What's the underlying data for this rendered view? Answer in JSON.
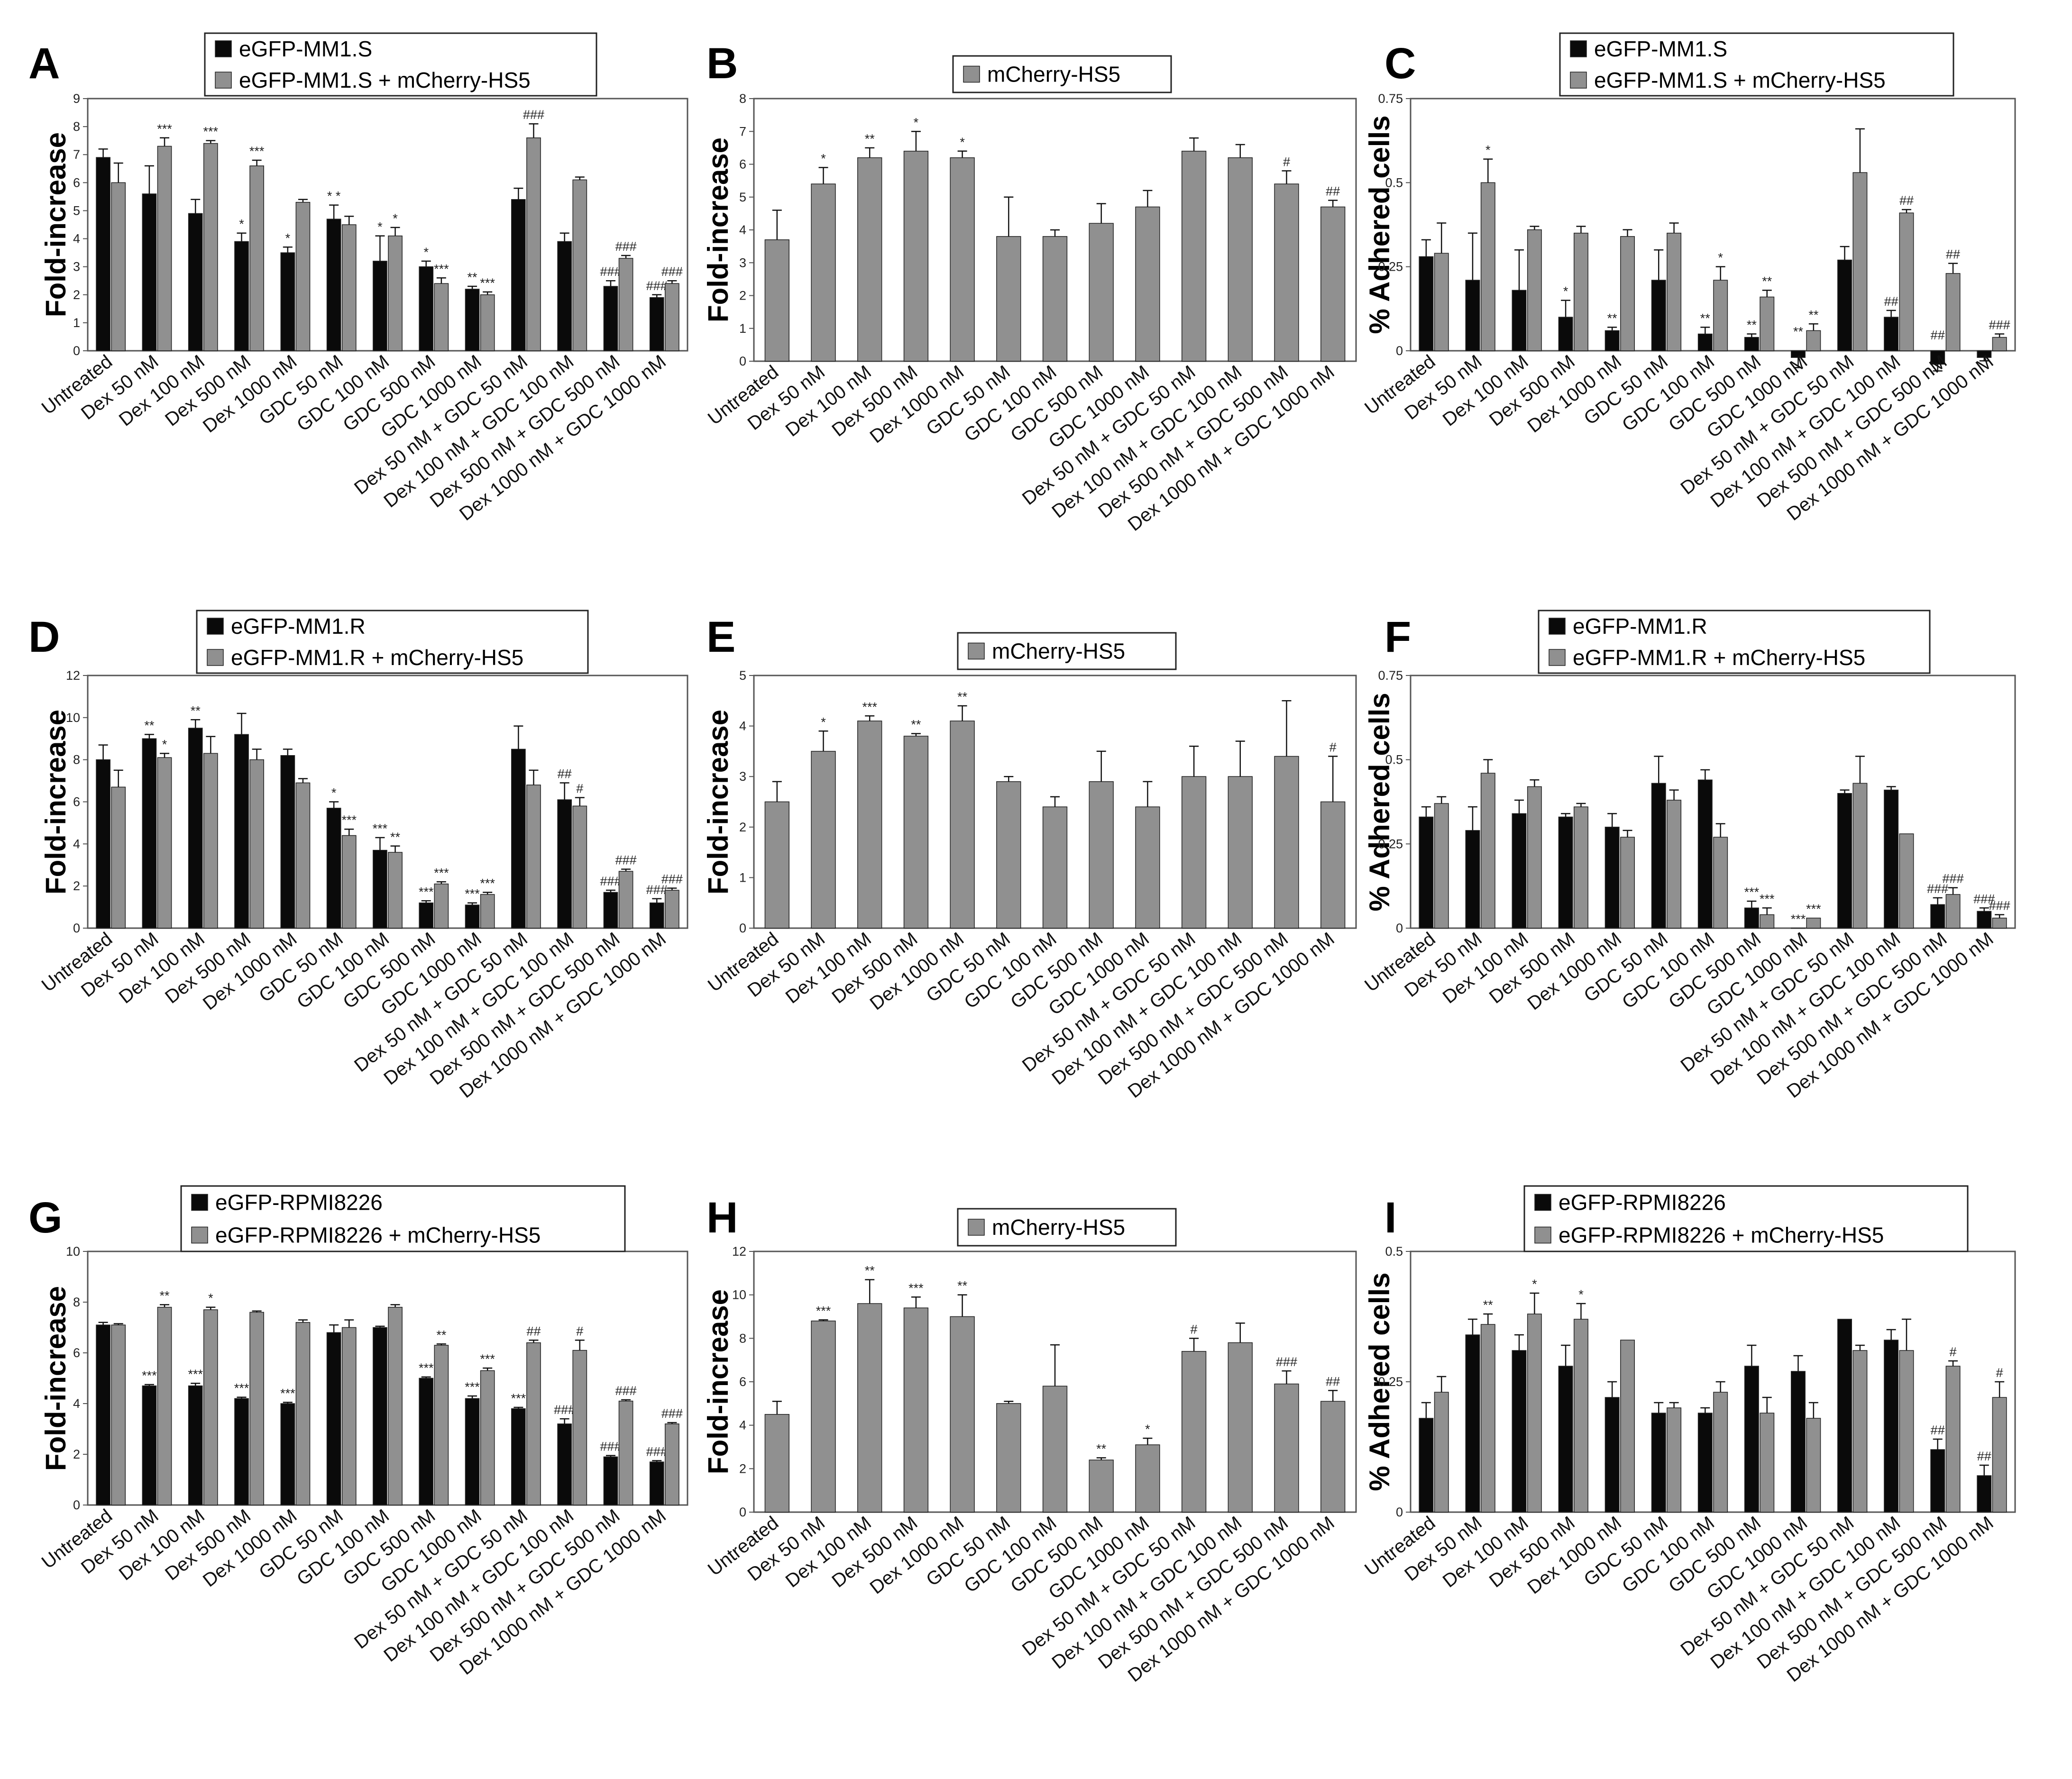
{
  "colors": {
    "black": "#0a0a0a",
    "gray": "#909090"
  },
  "chart_data": [
    {
      "panel": "A",
      "type": "bar",
      "ylabel": "Fold-increase",
      "ylim": [
        0,
        9
      ],
      "yticks": [
        "0",
        "1",
        "2",
        "3",
        "4",
        "5",
        "6",
        "7",
        "8",
        "9"
      ],
      "legend": [
        "eGFP-MM1.S",
        "eGFP-MM1.S + mCherry-HS5"
      ],
      "categories": [
        "Untreated",
        "Dex 50 nM",
        "Dex 100 nM",
        "Dex 500 nM",
        "Dex 1000 nM",
        "GDC 50 nM",
        "GDC 100 nM",
        "GDC 500 nM",
        "GDC 1000 nM",
        "Dex 50 nM + GDC 50 nM",
        "Dex 100 nM + GDC 100 nM",
        "Dex 500 nM + GDC 500 nM",
        "Dex 1000 nM + GDC 1000 nM"
      ],
      "series": [
        {
          "name": "eGFP-MM1.S",
          "color": "#0a0a0a",
          "values": [
            6.9,
            5.6,
            4.9,
            3.9,
            3.5,
            4.7,
            3.2,
            3.0,
            2.2,
            5.4,
            3.9,
            2.3,
            1.9
          ],
          "errors": [
            0.3,
            1.0,
            0.5,
            0.3,
            0.2,
            0.5,
            0.9,
            0.2,
            0.1,
            0.4,
            0.3,
            0.2,
            0.1
          ],
          "annotations": [
            "",
            "",
            "",
            "*",
            "*",
            "* *",
            "*",
            "*",
            "**",
            "",
            "",
            "###",
            "###"
          ]
        },
        {
          "name": "eGFP-MM1.S + mCherry-HS5",
          "color": "#909090",
          "values": [
            6.0,
            7.3,
            7.4,
            6.6,
            5.3,
            4.5,
            4.1,
            2.4,
            2.0,
            7.6,
            6.1,
            3.3,
            2.4
          ],
          "errors": [
            0.7,
            0.3,
            0.1,
            0.2,
            0.1,
            0.3,
            0.3,
            0.2,
            0.1,
            0.5,
            0.1,
            0.1,
            0.1
          ],
          "annotations": [
            "",
            "***",
            "***",
            "***",
            "",
            "",
            "*",
            "***",
            "***",
            "###",
            "",
            "###",
            "###"
          ]
        }
      ]
    },
    {
      "panel": "B",
      "type": "bar",
      "ylabel": "Fold-increase",
      "ylim": [
        0,
        8
      ],
      "yticks": [
        "0",
        "1",
        "2",
        "3",
        "4",
        "5",
        "6",
        "7",
        "8"
      ],
      "legend": [
        "mCherry-HS5"
      ],
      "categories": [
        "Untreated",
        "Dex 50 nM",
        "Dex 100 nM",
        "Dex 500 nM",
        "Dex 1000 nM",
        "GDC 50 nM",
        "GDC 100 nM",
        "GDC 500 nM",
        "GDC 1000 nM",
        "Dex 50 nM + GDC 50 nM",
        "Dex 100 nM + GDC 100 nM",
        "Dex 500 nM + GDC 500 nM",
        "Dex 1000 nM + GDC 1000 nM"
      ],
      "series": [
        {
          "name": "mCherry-HS5",
          "color": "#909090",
          "values": [
            3.7,
            5.4,
            6.2,
            6.4,
            6.2,
            3.8,
            3.8,
            4.2,
            4.7,
            6.4,
            6.2,
            5.4,
            4.7
          ],
          "errors": [
            0.9,
            0.5,
            0.3,
            0.6,
            0.2,
            1.2,
            0.2,
            0.6,
            0.5,
            0.4,
            0.4,
            0.4,
            0.2
          ],
          "annotations": [
            "",
            "*",
            "**",
            "*",
            "*",
            "",
            "",
            "",
            "",
            "",
            "",
            "#",
            "##"
          ]
        }
      ]
    },
    {
      "panel": "C",
      "type": "bar",
      "ylabel": "% Adhered cells",
      "ylim": [
        0,
        0.75
      ],
      "yticks": [
        "0",
        "0.25",
        "0.5",
        "0.75"
      ],
      "legend": [
        "eGFP-MM1.S",
        "eGFP-MM1.S + mCherry-HS5"
      ],
      "categories": [
        "Untreated",
        "Dex 50 nM",
        "Dex 100 nM",
        "Dex 500 nM",
        "Dex 1000 nM",
        "GDC 50 nM",
        "GDC 100 nM",
        "GDC 500 nM",
        "GDC 1000 nM",
        "Dex 50 nM + GDC 50 nM",
        "Dex 100 nM + GDC 100 nM",
        "Dex 500 nM + GDC 500 nM",
        "Dex 1000 nM + GDC 1000 nM"
      ],
      "series": [
        {
          "name": "eGFP-MM1.S",
          "color": "#0a0a0a",
          "values": [
            0.28,
            0.21,
            0.18,
            0.1,
            0.06,
            0.21,
            0.05,
            0.04,
            -0.02,
            0.27,
            0.1,
            -0.04,
            -0.02
          ],
          "errors": [
            0.05,
            0.14,
            0.12,
            0.05,
            0.01,
            0.09,
            0.02,
            0.01,
            0.03,
            0.04,
            0.02,
            0.02,
            0.01
          ],
          "annotations": [
            "",
            "",
            "",
            "*",
            "**",
            "",
            "**",
            "**",
            "**",
            "",
            "##",
            "##",
            ""
          ]
        },
        {
          "name": "eGFP-MM1.S + mCherry-HS5",
          "color": "#909090",
          "values": [
            0.29,
            0.5,
            0.36,
            0.35,
            0.34,
            0.35,
            0.21,
            0.16,
            0.06,
            0.53,
            0.41,
            0.23,
            0.04
          ],
          "errors": [
            0.09,
            0.07,
            0.01,
            0.02,
            0.02,
            0.03,
            0.04,
            0.02,
            0.02,
            0.13,
            0.01,
            0.03,
            0.01
          ],
          "annotations": [
            "",
            "*",
            "",
            "",
            "",
            "",
            "*",
            "**",
            "**",
            "",
            "##",
            "##",
            "###"
          ]
        }
      ]
    },
    {
      "panel": "D",
      "type": "bar",
      "ylabel": "Fold-increase",
      "ylim": [
        0,
        12
      ],
      "yticks": [
        "0",
        "2",
        "4",
        "6",
        "8",
        "10",
        "12"
      ],
      "legend": [
        "eGFP-MM1.R",
        "eGFP-MM1.R + mCherry-HS5"
      ],
      "categories": [
        "Untreated",
        "Dex 50 nM",
        "Dex 100 nM",
        "Dex 500 nM",
        "Dex 1000 nM",
        "GDC 50 nM",
        "GDC 100 nM",
        "GDC 500 nM",
        "GDC 1000 nM",
        "Dex 50 nM + GDC 50 nM",
        "Dex 100 nM + GDC 100 nM",
        "Dex 500 nM + GDC 500 nM",
        "Dex 1000 nM + GDC 1000 nM"
      ],
      "series": [
        {
          "name": "eGFP-MM1.R",
          "color": "#0a0a0a",
          "values": [
            8.0,
            9.0,
            9.5,
            9.2,
            8.2,
            5.7,
            3.7,
            1.2,
            1.1,
            8.5,
            6.1,
            1.7,
            1.2
          ],
          "errors": [
            0.7,
            0.2,
            0.4,
            1.0,
            0.3,
            0.3,
            0.6,
            0.1,
            0.1,
            1.1,
            0.8,
            0.1,
            0.2
          ],
          "annotations": [
            "",
            "**",
            "**",
            "",
            "",
            "*",
            "***",
            "***",
            "***",
            "",
            "##",
            "###",
            "###"
          ]
        },
        {
          "name": "eGFP-MM1.R + mCherry-HS5",
          "color": "#909090",
          "values": [
            6.7,
            8.1,
            8.3,
            8.0,
            6.9,
            4.4,
            3.6,
            2.1,
            1.6,
            6.8,
            5.8,
            2.7,
            1.8
          ],
          "errors": [
            0.8,
            0.2,
            0.8,
            0.5,
            0.2,
            0.3,
            0.3,
            0.1,
            0.1,
            0.7,
            0.4,
            0.1,
            0.1
          ],
          "annotations": [
            "",
            "*",
            "",
            "",
            "",
            "***",
            "**",
            "***",
            "***",
            "",
            "#",
            "###",
            "###"
          ]
        }
      ]
    },
    {
      "panel": "E",
      "type": "bar",
      "ylabel": "Fold-increase",
      "ylim": [
        0,
        5
      ],
      "yticks": [
        "0",
        "1",
        "2",
        "3",
        "4",
        "5"
      ],
      "legend": [
        "mCherry-HS5"
      ],
      "categories": [
        "Untreated",
        "Dex 50 nM",
        "Dex 100 nM",
        "Dex 500 nM",
        "Dex 1000 nM",
        "GDC 50 nM",
        "GDC 100 nM",
        "GDC 500 nM",
        "GDC 1000 nM",
        "Dex 50 nM + GDC 50 nM",
        "Dex 100 nM + GDC 100 nM",
        "Dex 500 nM + GDC 500 nM",
        "Dex 1000 nM + GDC 1000 nM"
      ],
      "series": [
        {
          "name": "mCherry-HS5",
          "color": "#909090",
          "values": [
            2.5,
            3.5,
            4.1,
            3.8,
            4.1,
            2.9,
            2.4,
            2.9,
            2.4,
            3.0,
            3.0,
            3.4,
            2.5
          ],
          "errors": [
            0.4,
            0.4,
            0.1,
            0.05,
            0.3,
            0.1,
            0.2,
            0.6,
            0.5,
            0.6,
            0.7,
            1.1,
            0.9
          ],
          "annotations": [
            "",
            "*",
            "***",
            "**",
            "**",
            "",
            "",
            "",
            "",
            "",
            "",
            "",
            "#"
          ]
        }
      ]
    },
    {
      "panel": "F",
      "type": "bar",
      "ylabel": "% Adhered cells",
      "ylim": [
        0,
        0.75
      ],
      "yticks": [
        "0",
        "0.25",
        "0.5",
        "0.75"
      ],
      "legend": [
        "eGFP-MM1.R",
        "eGFP-MM1.R + mCherry-HS5"
      ],
      "categories": [
        "Untreated",
        "Dex 50 nM",
        "Dex 100 nM",
        "Dex 500 nM",
        "Dex 1000 nM",
        "GDC 50 nM",
        "GDC 100 nM",
        "GDC 500 nM",
        "GDC 1000 nM",
        "Dex 50 nM + GDC 50 nM",
        "Dex 100 nM + GDC 100 nM",
        "Dex 500 nM + GDC 500 nM",
        "Dex 1000 nM + GDC 1000 nM"
      ],
      "series": [
        {
          "name": "eGFP-MM1.R",
          "color": "#0a0a0a",
          "values": [
            0.33,
            0.29,
            0.34,
            0.33,
            0.3,
            0.43,
            0.44,
            0.06,
            0.0,
            0.4,
            0.41,
            0.07,
            0.05
          ],
          "errors": [
            0.03,
            0.07,
            0.04,
            0.01,
            0.04,
            0.08,
            0.03,
            0.02,
            0.0,
            0.01,
            0.01,
            0.02,
            0.01
          ],
          "annotations": [
            "",
            "",
            "",
            "",
            "",
            "",
            "",
            "***",
            "***",
            "",
            "",
            "###",
            "###"
          ]
        },
        {
          "name": "eGFP-MM1.R + mCherry-HS5",
          "color": "#909090",
          "values": [
            0.37,
            0.46,
            0.42,
            0.36,
            0.27,
            0.38,
            0.27,
            0.04,
            0.03,
            0.43,
            0.28,
            0.1,
            0.03
          ],
          "errors": [
            0.02,
            0.04,
            0.02,
            0.01,
            0.02,
            0.03,
            0.04,
            0.02,
            0.0,
            0.08,
            0.0,
            0.02,
            0.01
          ],
          "annotations": [
            "",
            "",
            "",
            "",
            "",
            "",
            "",
            "***",
            "***",
            "",
            "",
            "###",
            "###"
          ]
        }
      ]
    },
    {
      "panel": "G",
      "type": "bar",
      "ylabel": "Fold-increase",
      "ylim": [
        0,
        10
      ],
      "yticks": [
        "0",
        "2",
        "4",
        "6",
        "8",
        "10"
      ],
      "legend": [
        "eGFP-RPMI8226",
        "eGFP-RPMI8226 + mCherry-HS5"
      ],
      "categories": [
        "Untreated",
        "Dex 50 nM",
        "Dex 100 nM",
        "Dex 500 nM",
        "Dex 1000 nM",
        "GDC 50 nM",
        "GDC 100 nM",
        "GDC 500 nM",
        "GDC 1000 nM",
        "Dex 50 nM + GDC 50 nM",
        "Dex 100 nM + GDC 100 nM",
        "Dex 500 nM + GDC 500 nM",
        "Dex 1000 nM + GDC 1000 nM"
      ],
      "series": [
        {
          "name": "eGFP-RPMI8226",
          "color": "#0a0a0a",
          "values": [
            7.1,
            4.7,
            4.7,
            4.2,
            4.0,
            6.8,
            7.0,
            5.0,
            4.2,
            3.8,
            3.2,
            1.9,
            1.7
          ],
          "errors": [
            0.1,
            0.05,
            0.1,
            0.05,
            0.05,
            0.3,
            0.05,
            0.05,
            0.1,
            0.05,
            0.2,
            0.05,
            0.05
          ],
          "annotations": [
            "",
            "***",
            "***",
            "***",
            "***",
            "",
            "",
            "***",
            "***",
            "***",
            "###",
            "###",
            "###"
          ]
        },
        {
          "name": "eGFP-RPMI8226 + mCherry-HS5",
          "color": "#909090",
          "values": [
            7.1,
            7.8,
            7.7,
            7.6,
            7.2,
            7.0,
            7.8,
            6.3,
            5.3,
            6.4,
            6.1,
            4.1,
            3.2
          ],
          "errors": [
            0.05,
            0.1,
            0.1,
            0.05,
            0.1,
            0.3,
            0.1,
            0.05,
            0.1,
            0.1,
            0.4,
            0.05,
            0.05
          ],
          "annotations": [
            "",
            "**",
            "*",
            "",
            "",
            "",
            "",
            "**",
            "***",
            "##",
            "#",
            "###",
            "###"
          ]
        }
      ]
    },
    {
      "panel": "H",
      "type": "bar",
      "ylabel": "Fold-increase",
      "ylim": [
        0,
        12
      ],
      "yticks": [
        "0",
        "2",
        "4",
        "6",
        "8",
        "10",
        "12"
      ],
      "legend": [
        "mCherry-HS5"
      ],
      "categories": [
        "Untreated",
        "Dex 50 nM",
        "Dex 100 nM",
        "Dex 500 nM",
        "Dex 1000 nM",
        "GDC 50 nM",
        "GDC 100 nM",
        "GDC 500 nM",
        "GDC 1000 nM",
        "Dex 50 nM + GDC 50 nM",
        "Dex 100 nM + GDC 100 nM",
        "Dex 500 nM + GDC 500 nM",
        "Dex 1000 nM + GDC 1000 nM"
      ],
      "series": [
        {
          "name": "mCherry-HS5",
          "color": "#909090",
          "values": [
            4.5,
            8.8,
            9.6,
            9.4,
            9.0,
            5.0,
            5.8,
            2.4,
            3.1,
            7.4,
            7.8,
            5.9,
            5.1
          ],
          "errors": [
            0.6,
            0.05,
            1.1,
            0.5,
            1.0,
            0.1,
            1.9,
            0.1,
            0.3,
            0.6,
            0.9,
            0.6,
            0.5
          ],
          "annotations": [
            "",
            "***",
            "**",
            "***",
            "**",
            "",
            "",
            "**",
            "*",
            "#",
            "",
            "###",
            "##"
          ]
        }
      ]
    },
    {
      "panel": "I",
      "type": "bar",
      "ylabel": "% Adhered cells",
      "ylim": [
        0,
        0.5
      ],
      "yticks": [
        "0",
        "0.25",
        "0.5"
      ],
      "legend": [
        "eGFP-RPMI8226",
        "eGFP-RPMI8226 + mCherry-HS5"
      ],
      "categories": [
        "Untreated",
        "Dex 50 nM",
        "Dex 100 nM",
        "Dex 500 nM",
        "Dex 1000 nM",
        "GDC 50 nM",
        "GDC 100 nM",
        "GDC 500 nM",
        "GDC 1000 nM",
        "Dex 50 nM + GDC 50 nM",
        "Dex 100 nM + GDC 100 nM",
        "Dex 500 nM + GDC 500 nM",
        "Dex 1000 nM + GDC 1000 nM"
      ],
      "series": [
        {
          "name": "eGFP-RPMI8226",
          "color": "#0a0a0a",
          "values": [
            0.18,
            0.34,
            0.31,
            0.28,
            0.22,
            0.19,
            0.19,
            0.28,
            0.27,
            0.37,
            0.33,
            0.12,
            0.07
          ],
          "errors": [
            0.03,
            0.03,
            0.03,
            0.04,
            0.03,
            0.02,
            0.01,
            0.04,
            0.03,
            0.0,
            0.02,
            0.02,
            0.02
          ],
          "annotations": [
            "",
            "",
            "",
            "",
            "",
            "",
            "",
            "",
            "",
            "",
            "",
            "##",
            "##"
          ]
        },
        {
          "name": "eGFP-RPMI8226 + mCherry-HS5",
          "color": "#909090",
          "values": [
            0.23,
            0.36,
            0.38,
            0.37,
            0.33,
            0.2,
            0.23,
            0.19,
            0.18,
            0.31,
            0.31,
            0.28,
            0.22
          ],
          "errors": [
            0.03,
            0.02,
            0.04,
            0.03,
            0.0,
            0.01,
            0.02,
            0.03,
            0.03,
            0.01,
            0.06,
            0.01,
            0.03
          ],
          "annotations": [
            "",
            "**",
            "*",
            "*",
            "",
            "",
            "",
            "",
            "",
            "",
            "",
            "#",
            "#"
          ]
        }
      ]
    }
  ]
}
